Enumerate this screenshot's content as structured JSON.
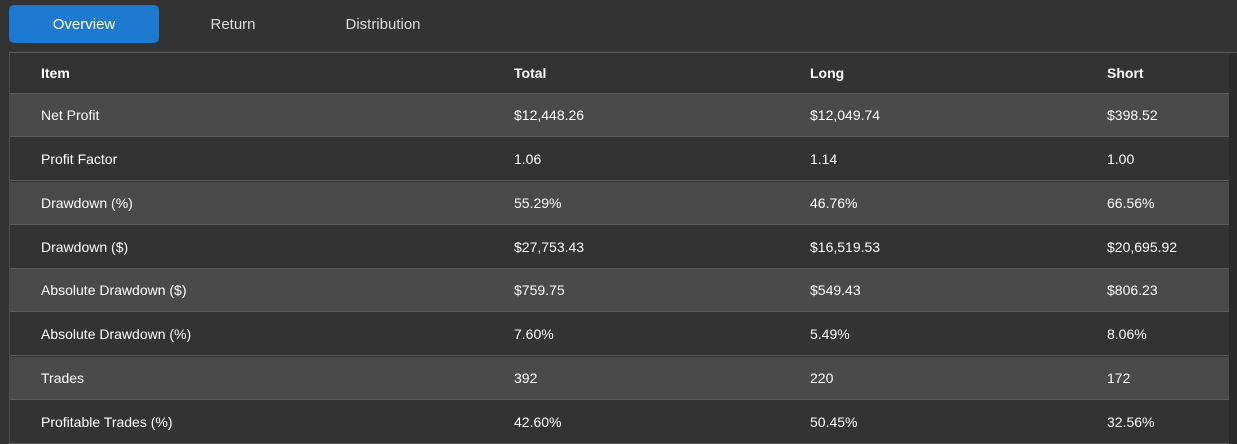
{
  "tabs": [
    {
      "label": "Overview",
      "active": true
    },
    {
      "label": "Return",
      "active": false
    },
    {
      "label": "Distribution",
      "active": false
    }
  ],
  "table": {
    "columns": [
      "Item",
      "Total",
      "Long",
      "Short"
    ],
    "rows": [
      [
        "Net Profit",
        "$12,448.26",
        "$12,049.74",
        "$398.52"
      ],
      [
        "Profit Factor",
        "1.06",
        "1.14",
        "1.00"
      ],
      [
        "Drawdown (%)",
        "55.29%",
        "46.76%",
        "66.56%"
      ],
      [
        "Drawdown ($)",
        "$27,753.43",
        "$16,519.53",
        "$20,695.92"
      ],
      [
        "Absolute Drawdown ($)",
        "$759.75",
        "$549.43",
        "$806.23"
      ],
      [
        "Absolute Drawdown (%)",
        "7.60%",
        "5.49%",
        "8.06%"
      ],
      [
        "Trades",
        "392",
        "220",
        "172"
      ],
      [
        "Profitable Trades (%)",
        "42.60%",
        "50.45%",
        "32.56%"
      ]
    ]
  },
  "colors": {
    "background": "#333333",
    "row_alt": "#4a4a4a",
    "accent": "#1d7ad0"
  }
}
